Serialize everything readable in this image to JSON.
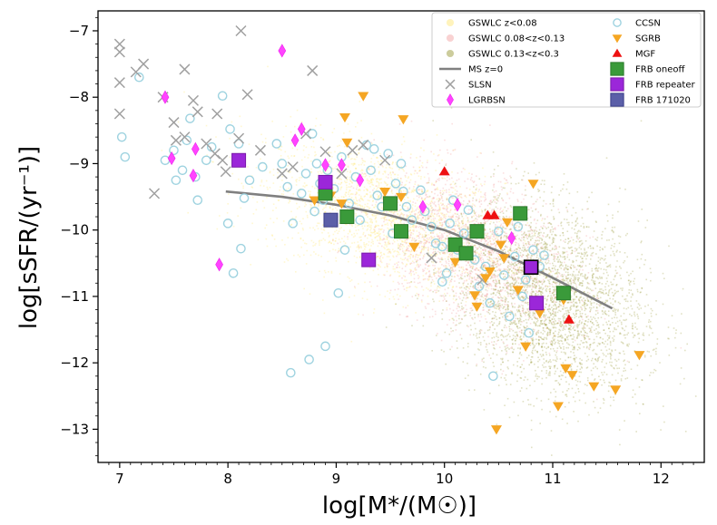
{
  "chart_data": {
    "type": "scatter",
    "title": "",
    "xlabel": "log[M*/(M☉)]",
    "ylabel": "log[sSFR/(yr⁻¹)]",
    "xlim": [
      6.8,
      12.4
    ],
    "ylim": [
      -13.5,
      -6.7
    ],
    "xticks": [
      7,
      8,
      9,
      10,
      11,
      12
    ],
    "yticks": [
      -7,
      -8,
      -9,
      -10,
      -11,
      -12,
      -13
    ],
    "xtick_labels": [
      "7",
      "8",
      "9",
      "10",
      "11",
      "12"
    ],
    "ytick_labels": [
      "−7",
      "−8",
      "−9",
      "−10",
      "−11",
      "−12",
      "−13"
    ],
    "grid": false,
    "legend_position": "top-right",
    "colors": {
      "gswlc_low": "#ffe87a",
      "gswlc_mid": "#f4a6a6",
      "gswlc_high": "#9a9a3a",
      "ms": "#808080",
      "slsn": "#a0a0a0",
      "lgrbsn": "#ff44ff",
      "ccsn": "#9fd3e0",
      "sgrb": "#f5a623",
      "mgf": "#ee1111",
      "frb_oneoff": "#3a9a3a",
      "frb_repeater": "#9b27d9",
      "frb_171020": "#5b5fa8"
    },
    "legend": [
      {
        "key": "gswlc_low",
        "label": "GSWLC z<0.08",
        "marker": "dot"
      },
      {
        "key": "gswlc_mid",
        "label": "GSWLC 0.08<z<0.13",
        "marker": "dot"
      },
      {
        "key": "gswlc_high",
        "label": "GSWLC 0.13<z<0.3",
        "marker": "dot"
      },
      {
        "key": "ms",
        "label": "MS z=0",
        "marker": "line"
      },
      {
        "key": "slsn",
        "label": "SLSN",
        "marker": "x"
      },
      {
        "key": "lgrbsn",
        "label": "LGRBSN",
        "marker": "diamond"
      },
      {
        "key": "ccsn",
        "label": "CCSN",
        "marker": "circle"
      },
      {
        "key": "sgrb",
        "label": "SGRB",
        "marker": "tri-down"
      },
      {
        "key": "mgf",
        "label": "MGF",
        "marker": "tri-up"
      },
      {
        "key": "frb_oneoff",
        "label": "FRB oneoff",
        "marker": "square"
      },
      {
        "key": "frb_repeater",
        "label": "FRB repeater",
        "marker": "square"
      },
      {
        "key": "frb_171020",
        "label": "FRB 171020",
        "marker": "square"
      }
    ],
    "series": [
      {
        "name": "MS z=0",
        "key": "ms",
        "type": "line",
        "points": [
          [
            7.98,
            -9.42
          ],
          [
            8.5,
            -9.5
          ],
          [
            9.0,
            -9.62
          ],
          [
            9.5,
            -9.78
          ],
          [
            10.0,
            -10.0
          ],
          [
            10.5,
            -10.32
          ],
          [
            11.0,
            -10.72
          ],
          [
            11.55,
            -11.18
          ]
        ]
      },
      {
        "name": "SLSN",
        "key": "slsn",
        "marker": "x",
        "points": [
          [
            7.0,
            -7.2
          ],
          [
            7.0,
            -7.32
          ],
          [
            7.0,
            -7.78
          ],
          [
            7.0,
            -8.25
          ],
          [
            7.15,
            -7.62
          ],
          [
            7.22,
            -7.5
          ],
          [
            7.32,
            -9.45
          ],
          [
            7.4,
            -8.0
          ],
          [
            7.52,
            -8.65
          ],
          [
            7.5,
            -8.38
          ],
          [
            7.6,
            -7.58
          ],
          [
            7.6,
            -8.6
          ],
          [
            7.68,
            -8.05
          ],
          [
            7.72,
            -8.22
          ],
          [
            7.8,
            -8.7
          ],
          [
            7.88,
            -8.85
          ],
          [
            7.9,
            -8.25
          ],
          [
            7.95,
            -8.95
          ],
          [
            7.98,
            -9.12
          ],
          [
            8.1,
            -8.62
          ],
          [
            8.12,
            -7.0
          ],
          [
            8.18,
            -7.96
          ],
          [
            8.3,
            -8.8
          ],
          [
            8.5,
            -9.15
          ],
          [
            8.6,
            -9.05
          ],
          [
            8.72,
            -8.55
          ],
          [
            8.78,
            -7.6
          ],
          [
            8.9,
            -8.82
          ],
          [
            9.05,
            -9.15
          ],
          [
            9.15,
            -8.8
          ],
          [
            9.25,
            -8.72
          ],
          [
            9.45,
            -8.95
          ],
          [
            9.88,
            -10.42
          ],
          [
            10.35,
            -10.75
          ]
        ]
      },
      {
        "name": "LGRBSN",
        "key": "lgrbsn",
        "marker": "diamond",
        "points": [
          [
            7.42,
            -8.0
          ],
          [
            7.48,
            -8.92
          ],
          [
            7.7,
            -8.78
          ],
          [
            7.68,
            -9.18
          ],
          [
            7.92,
            -10.52
          ],
          [
            8.5,
            -7.3
          ],
          [
            8.62,
            -8.65
          ],
          [
            8.68,
            -8.48
          ],
          [
            8.9,
            -9.02
          ],
          [
            9.05,
            -9.02
          ],
          [
            9.22,
            -9.25
          ],
          [
            9.8,
            -9.65
          ],
          [
            10.12,
            -9.62
          ],
          [
            10.62,
            -10.12
          ]
        ]
      },
      {
        "name": "CCSN",
        "key": "ccsn",
        "marker": "circle",
        "points": [
          [
            7.02,
            -8.6
          ],
          [
            7.05,
            -8.9
          ],
          [
            7.18,
            -7.7
          ],
          [
            7.42,
            -8.95
          ],
          [
            7.5,
            -8.8
          ],
          [
            7.52,
            -9.25
          ],
          [
            7.58,
            -9.1
          ],
          [
            7.62,
            -8.65
          ],
          [
            7.65,
            -8.32
          ],
          [
            7.7,
            -9.2
          ],
          [
            7.72,
            -9.55
          ],
          [
            7.8,
            -8.95
          ],
          [
            7.85,
            -8.75
          ],
          [
            7.95,
            -7.98
          ],
          [
            8.0,
            -9.9
          ],
          [
            8.02,
            -8.48
          ],
          [
            8.05,
            -10.65
          ],
          [
            8.1,
            -8.7
          ],
          [
            8.12,
            -10.28
          ],
          [
            8.15,
            -9.52
          ],
          [
            8.2,
            -9.25
          ],
          [
            8.32,
            -9.05
          ],
          [
            8.45,
            -8.7
          ],
          [
            8.5,
            -9.0
          ],
          [
            8.55,
            -9.35
          ],
          [
            8.58,
            -12.15
          ],
          [
            8.6,
            -9.9
          ],
          [
            8.68,
            -9.45
          ],
          [
            8.72,
            -9.15
          ],
          [
            8.78,
            -8.55
          ],
          [
            8.8,
            -9.72
          ],
          [
            8.82,
            -9.0
          ],
          [
            8.85,
            -9.3
          ],
          [
            8.88,
            -9.55
          ],
          [
            8.9,
            -11.75
          ],
          [
            8.92,
            -9.1
          ],
          [
            8.98,
            -9.38
          ],
          [
            9.02,
            -10.95
          ],
          [
            9.05,
            -8.9
          ],
          [
            9.08,
            -10.3
          ],
          [
            9.12,
            -9.6
          ],
          [
            9.18,
            -9.2
          ],
          [
            9.22,
            -9.85
          ],
          [
            9.28,
            -8.72
          ],
          [
            9.32,
            -9.1
          ],
          [
            9.38,
            -9.48
          ],
          [
            9.42,
            -9.65
          ],
          [
            9.48,
            -8.85
          ],
          [
            9.52,
            -10.05
          ],
          [
            9.55,
            -9.3
          ],
          [
            9.6,
            -9.0
          ],
          [
            9.65,
            -9.65
          ],
          [
            9.7,
            -9.85
          ],
          [
            9.78,
            -9.4
          ],
          [
            9.82,
            -9.72
          ],
          [
            9.88,
            -9.95
          ],
          [
            9.92,
            -10.2
          ],
          [
            9.98,
            -10.25
          ],
          [
            10.02,
            -10.65
          ],
          [
            10.05,
            -9.9
          ],
          [
            10.08,
            -9.55
          ],
          [
            10.12,
            -10.3
          ],
          [
            10.18,
            -10.05
          ],
          [
            10.22,
            -9.7
          ],
          [
            10.28,
            -10.45
          ],
          [
            10.32,
            -10.85
          ],
          [
            10.38,
            -10.55
          ],
          [
            10.42,
            -11.1
          ],
          [
            10.45,
            -12.2
          ],
          [
            10.5,
            -10.02
          ],
          [
            10.55,
            -10.68
          ],
          [
            10.6,
            -11.3
          ],
          [
            10.65,
            -10.4
          ],
          [
            10.68,
            -9.95
          ],
          [
            10.72,
            -11.0
          ],
          [
            10.75,
            -10.75
          ],
          [
            10.78,
            -11.55
          ],
          [
            10.82,
            -10.3
          ],
          [
            10.88,
            -10.55
          ],
          [
            10.92,
            -10.38
          ],
          [
            8.75,
            -11.95
          ],
          [
            9.35,
            -8.78
          ],
          [
            9.62,
            -9.42
          ],
          [
            9.98,
            -10.78
          ]
        ]
      },
      {
        "name": "SGRB",
        "key": "sgrb",
        "marker": "tri-down",
        "points": [
          [
            8.8,
            -9.55
          ],
          [
            8.95,
            -9.48
          ],
          [
            9.05,
            -9.6
          ],
          [
            9.08,
            -8.3
          ],
          [
            9.1,
            -8.68
          ],
          [
            9.25,
            -7.98
          ],
          [
            9.45,
            -9.42
          ],
          [
            9.6,
            -9.5
          ],
          [
            9.62,
            -8.33
          ],
          [
            9.72,
            -10.25
          ],
          [
            10.1,
            -10.48
          ],
          [
            10.28,
            -10.98
          ],
          [
            10.3,
            -11.15
          ],
          [
            10.38,
            -10.72
          ],
          [
            10.42,
            -10.62
          ],
          [
            10.48,
            -13.0
          ],
          [
            10.52,
            -10.22
          ],
          [
            10.55,
            -10.42
          ],
          [
            10.58,
            -9.88
          ],
          [
            10.68,
            -10.9
          ],
          [
            10.75,
            -11.75
          ],
          [
            10.82,
            -9.3
          ],
          [
            10.88,
            -11.25
          ],
          [
            11.05,
            -12.65
          ],
          [
            11.1,
            -11.05
          ],
          [
            11.12,
            -12.08
          ],
          [
            11.18,
            -12.18
          ],
          [
            11.38,
            -12.35
          ],
          [
            11.58,
            -12.4
          ],
          [
            11.8,
            -11.88
          ]
        ]
      },
      {
        "name": "MGF",
        "key": "mgf",
        "marker": "tri-up",
        "points": [
          [
            10.0,
            -9.12
          ],
          [
            10.4,
            -9.78
          ],
          [
            10.46,
            -9.78
          ],
          [
            11.15,
            -11.35
          ]
        ]
      },
      {
        "name": "FRB oneoff",
        "key": "frb_oneoff",
        "marker": "square",
        "points": [
          [
            8.9,
            -9.45
          ],
          [
            9.1,
            -9.8
          ],
          [
            9.5,
            -9.6
          ],
          [
            9.6,
            -10.02
          ],
          [
            10.1,
            -10.22
          ],
          [
            10.2,
            -10.35
          ],
          [
            10.3,
            -10.02
          ],
          [
            10.7,
            -9.75
          ],
          [
            11.1,
            -10.95
          ]
        ]
      },
      {
        "name": "FRB repeater",
        "key": "frb_repeater",
        "marker": "square",
        "points": [
          [
            8.1,
            -8.95
          ],
          [
            8.9,
            -9.28
          ],
          [
            9.3,
            -10.45
          ],
          [
            10.8,
            -10.56
          ],
          [
            10.85,
            -11.1
          ]
        ]
      },
      {
        "name": "FRB 171020",
        "key": "frb_171020",
        "marker": "square",
        "points": [
          [
            8.95,
            -9.85
          ]
        ]
      }
    ]
  }
}
